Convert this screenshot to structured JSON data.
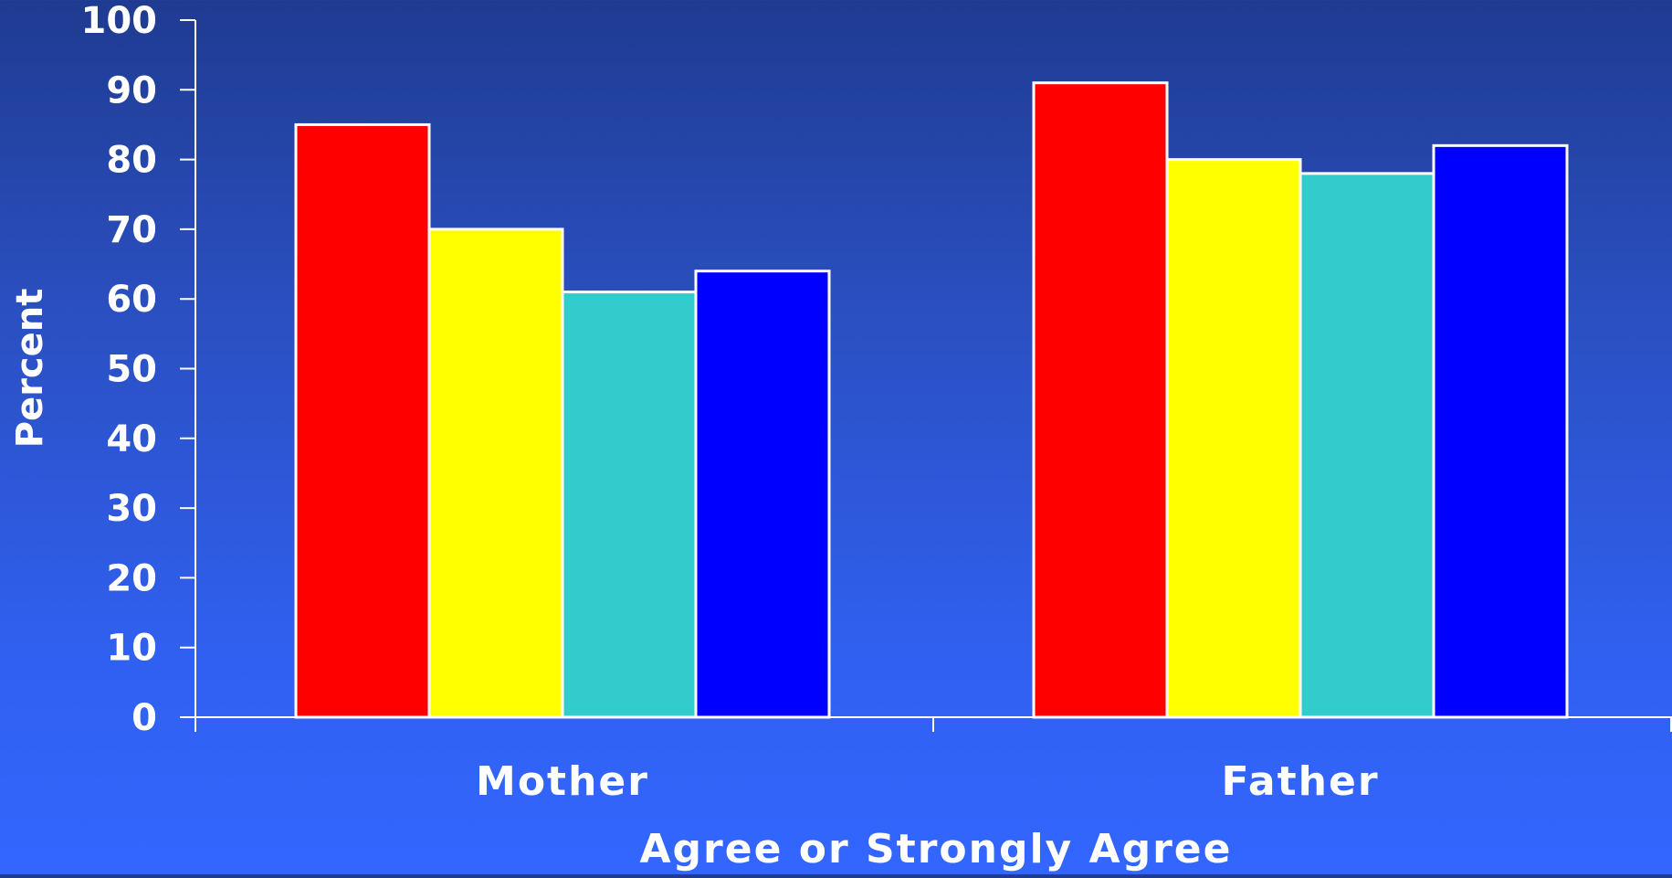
{
  "chart_data": {
    "type": "bar",
    "categories": [
      "Mother",
      "Father"
    ],
    "series": [
      {
        "color": "#ff0000",
        "values": [
          85,
          91
        ]
      },
      {
        "color": "#ffff00",
        "values": [
          70,
          80
        ]
      },
      {
        "color": "#33cccc",
        "values": [
          61,
          78
        ]
      },
      {
        "color": "#0000ff",
        "values": [
          64,
          82
        ]
      }
    ],
    "xlabel": "Agree or Strongly Agree",
    "ylabel": "Percent",
    "ylim": [
      0,
      100
    ],
    "yticks": [
      "0",
      "10",
      "20",
      "30",
      "40",
      "50",
      "60",
      "70",
      "80",
      "90",
      "100"
    ],
    "grid": false,
    "legend": "none",
    "bar_edge_color": "#ffffff",
    "text_color": "#ffffff"
  }
}
